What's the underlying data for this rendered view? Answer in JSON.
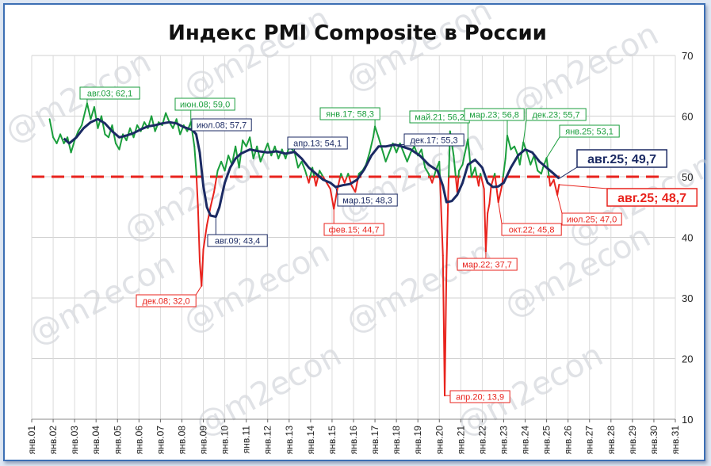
{
  "chart_data": {
    "type": "line",
    "title": "Индекс PMI Composite в России",
    "ylim": [
      10,
      70
    ],
    "yticks": [
      10,
      20,
      30,
      40,
      50,
      60,
      70
    ],
    "xlim": [
      "2001-01",
      "2031-01"
    ],
    "xticks": [
      "янв.01",
      "янв.02",
      "янв.03",
      "янв.04",
      "янв.05",
      "янв.06",
      "янв.07",
      "янв.08",
      "янв.09",
      "янв.10",
      "янв.11",
      "янв.12",
      "янв.13",
      "янв.14",
      "янв.15",
      "янв.16",
      "янв.17",
      "янв.18",
      "янв.19",
      "янв.20",
      "янв.21",
      "янв.22",
      "янв.23",
      "янв.24",
      "янв.25",
      "янв.26",
      "янв.27",
      "янв.28",
      "янв.29",
      "янв.30",
      "янв.31"
    ],
    "threshold": 50,
    "grid": true,
    "series": [
      {
        "color": "#1a9e3c",
        "color_below_threshold": "#e8231d",
        "points": [
          [
            "2001-11",
            59.5
          ],
          [
            "2002-01",
            56.5
          ],
          [
            "2002-03",
            55.5
          ],
          [
            "2002-05",
            57.0
          ],
          [
            "2002-07",
            55.5
          ],
          [
            "2002-09",
            56.5
          ],
          [
            "2002-11",
            54.0
          ],
          [
            "2003-01",
            56.0
          ],
          [
            "2003-03",
            57.5
          ],
          [
            "2003-05",
            58.5
          ],
          [
            "2003-08",
            62.1
          ],
          [
            "2003-10",
            59.5
          ],
          [
            "2003-12",
            61.5
          ],
          [
            "2004-02",
            58.0
          ],
          [
            "2004-04",
            60.0
          ],
          [
            "2004-06",
            57.0
          ],
          [
            "2004-08",
            56.5
          ],
          [
            "2004-10",
            58.5
          ],
          [
            "2004-12",
            55.5
          ],
          [
            "2005-02",
            54.5
          ],
          [
            "2005-04",
            57.0
          ],
          [
            "2005-06",
            56.0
          ],
          [
            "2005-08",
            58.0
          ],
          [
            "2005-10",
            56.5
          ],
          [
            "2005-12",
            58.5
          ],
          [
            "2006-02",
            57.5
          ],
          [
            "2006-04",
            59.0
          ],
          [
            "2006-06",
            58.0
          ],
          [
            "2006-08",
            60.0
          ],
          [
            "2006-10",
            57.5
          ],
          [
            "2006-12",
            59.0
          ],
          [
            "2007-02",
            58.5
          ],
          [
            "2007-04",
            60.5
          ],
          [
            "2007-06",
            59.0
          ],
          [
            "2007-08",
            58.0
          ],
          [
            "2007-10",
            59.5
          ],
          [
            "2007-12",
            57.0
          ],
          [
            "2008-02",
            58.5
          ],
          [
            "2008-04",
            57.5
          ],
          [
            "2008-06",
            59.0
          ],
          [
            "2008-08",
            55.0
          ],
          [
            "2008-09",
            51.0
          ],
          [
            "2008-10",
            45.0
          ],
          [
            "2008-11",
            36.0
          ],
          [
            "2008-12",
            32.0
          ],
          [
            "2009-01",
            38.0
          ],
          [
            "2009-03",
            42.0
          ],
          [
            "2009-05",
            45.0
          ],
          [
            "2009-07",
            47.5
          ],
          [
            "2009-09",
            51.0
          ],
          [
            "2009-11",
            52.5
          ],
          [
            "2010-01",
            51.0
          ],
          [
            "2010-03",
            53.5
          ],
          [
            "2010-05",
            52.0
          ],
          [
            "2010-07",
            55.0
          ],
          [
            "2010-09",
            51.5
          ],
          [
            "2010-11",
            56.0
          ],
          [
            "2011-01",
            55.0
          ],
          [
            "2011-03",
            56.5
          ],
          [
            "2011-05",
            53.0
          ],
          [
            "2011-07",
            55.0
          ],
          [
            "2011-09",
            52.5
          ],
          [
            "2011-11",
            54.0
          ],
          [
            "2012-01",
            55.5
          ],
          [
            "2012-03",
            53.5
          ],
          [
            "2012-05",
            55.0
          ],
          [
            "2012-07",
            53.0
          ],
          [
            "2012-09",
            54.5
          ],
          [
            "2012-11",
            53.0
          ],
          [
            "2013-01",
            55.0
          ],
          [
            "2013-04",
            54.1
          ],
          [
            "2013-06",
            51.5
          ],
          [
            "2013-08",
            52.5
          ],
          [
            "2013-10",
            51.0
          ],
          [
            "2013-12",
            49.0
          ],
          [
            "2014-02",
            51.5
          ],
          [
            "2014-04",
            48.5
          ],
          [
            "2014-06",
            51.0
          ],
          [
            "2014-08",
            50.0
          ],
          [
            "2014-10",
            49.0
          ],
          [
            "2014-12",
            48.0
          ],
          [
            "2015-02",
            44.7
          ],
          [
            "2015-04",
            48.0
          ],
          [
            "2015-06",
            50.5
          ],
          [
            "2015-08",
            49.0
          ],
          [
            "2015-10",
            50.5
          ],
          [
            "2015-12",
            48.5
          ],
          [
            "2016-02",
            47.5
          ],
          [
            "2016-04",
            50.5
          ],
          [
            "2016-06",
            51.0
          ],
          [
            "2016-08",
            52.0
          ],
          [
            "2016-10",
            54.0
          ],
          [
            "2016-12",
            56.5
          ],
          [
            "2017-01",
            58.3
          ],
          [
            "2017-03",
            56.5
          ],
          [
            "2017-05",
            54.5
          ],
          [
            "2017-07",
            52.5
          ],
          [
            "2017-09",
            54.0
          ],
          [
            "2017-11",
            55.5
          ],
          [
            "2018-01",
            54.0
          ],
          [
            "2018-03",
            55.5
          ],
          [
            "2018-05",
            54.0
          ],
          [
            "2018-07",
            52.5
          ],
          [
            "2018-09",
            54.0
          ],
          [
            "2018-11",
            55.0
          ],
          [
            "2019-01",
            53.5
          ],
          [
            "2019-03",
            54.5
          ],
          [
            "2019-05",
            51.5
          ],
          [
            "2019-07",
            50.5
          ],
          [
            "2019-09",
            49.0
          ],
          [
            "2019-11",
            51.0
          ],
          [
            "2020-01",
            52.5
          ],
          [
            "2020-03",
            37.0
          ],
          [
            "2020-04",
            13.9
          ],
          [
            "2020-05",
            35.0
          ],
          [
            "2020-06",
            47.5
          ],
          [
            "2020-07",
            57.5
          ],
          [
            "2020-09",
            53.5
          ],
          [
            "2020-11",
            47.5
          ],
          [
            "2020-12",
            51.0
          ],
          [
            "2021-02",
            52.0
          ],
          [
            "2021-03",
            53.5
          ],
          [
            "2021-05",
            56.2
          ],
          [
            "2021-07",
            50.0
          ],
          [
            "2021-09",
            51.5
          ],
          [
            "2021-11",
            48.5
          ],
          [
            "2021-12",
            50.5
          ],
          [
            "2022-02",
            48.0
          ],
          [
            "2022-03",
            37.7
          ],
          [
            "2022-04",
            44.0
          ],
          [
            "2022-05",
            45.5
          ],
          [
            "2022-06",
            48.5
          ],
          [
            "2022-08",
            50.5
          ],
          [
            "2022-10",
            45.8
          ],
          [
            "2022-12",
            48.5
          ],
          [
            "2023-02",
            53.0
          ],
          [
            "2023-03",
            56.8
          ],
          [
            "2023-05",
            54.5
          ],
          [
            "2023-07",
            55.0
          ],
          [
            "2023-09",
            53.5
          ],
          [
            "2023-10",
            52.0
          ],
          [
            "2023-12",
            55.7
          ],
          [
            "2024-02",
            54.0
          ],
          [
            "2024-04",
            52.0
          ],
          [
            "2024-06",
            53.5
          ],
          [
            "2024-08",
            51.0
          ],
          [
            "2024-10",
            50.5
          ],
          [
            "2024-11",
            51.5
          ],
          [
            "2025-01",
            53.1
          ],
          [
            "2025-03",
            48.5
          ],
          [
            "2025-05",
            49.5
          ],
          [
            "2025-07",
            47.0
          ],
          [
            "2025-08",
            48.7
          ]
        ]
      },
      {
        "color": "#1b2a63",
        "points": [
          [
            "2002-07",
            56.3
          ],
          [
            "2002-10",
            55.5
          ],
          [
            "2003-02",
            56.5
          ],
          [
            "2003-06",
            58.0
          ],
          [
            "2003-10",
            59.0
          ],
          [
            "2004-02",
            59.5
          ],
          [
            "2004-06",
            58.8
          ],
          [
            "2004-10",
            57.5
          ],
          [
            "2005-02",
            56.5
          ],
          [
            "2005-06",
            56.8
          ],
          [
            "2005-10",
            57.2
          ],
          [
            "2006-02",
            57.8
          ],
          [
            "2006-06",
            58.3
          ],
          [
            "2006-10",
            58.5
          ],
          [
            "2007-02",
            58.8
          ],
          [
            "2007-06",
            59.0
          ],
          [
            "2007-10",
            58.8
          ],
          [
            "2008-02",
            58.2
          ],
          [
            "2008-07",
            57.7
          ],
          [
            "2008-09",
            57.0
          ],
          [
            "2008-11",
            54.0
          ],
          [
            "2009-01",
            48.5
          ],
          [
            "2009-03",
            45.0
          ],
          [
            "2009-05",
            43.6
          ],
          [
            "2009-08",
            43.4
          ],
          [
            "2009-10",
            45.0
          ],
          [
            "2010-01",
            49.0
          ],
          [
            "2010-04",
            51.5
          ],
          [
            "2010-07",
            53.0
          ],
          [
            "2010-10",
            53.8
          ],
          [
            "2011-03",
            54.5
          ],
          [
            "2011-08",
            54.2
          ],
          [
            "2012-01",
            54.0
          ],
          [
            "2012-06",
            54.2
          ],
          [
            "2012-11",
            53.8
          ],
          [
            "2013-04",
            54.1
          ],
          [
            "2013-08",
            53.0
          ],
          [
            "2013-12",
            51.5
          ],
          [
            "2014-04",
            50.5
          ],
          [
            "2014-08",
            49.5
          ],
          [
            "2014-12",
            49.0
          ],
          [
            "2015-03",
            48.3
          ],
          [
            "2015-07",
            48.6
          ],
          [
            "2015-11",
            48.8
          ],
          [
            "2016-03",
            49.5
          ],
          [
            "2016-07",
            51.2
          ],
          [
            "2016-11",
            53.5
          ],
          [
            "2017-03",
            55.0
          ],
          [
            "2017-07",
            55.0
          ],
          [
            "2017-12",
            55.3
          ],
          [
            "2018-04",
            55.0
          ],
          [
            "2018-09",
            54.5
          ],
          [
            "2019-02",
            53.5
          ],
          [
            "2019-07",
            52.0
          ],
          [
            "2019-12",
            51.0
          ],
          [
            "2020-03",
            48.5
          ],
          [
            "2020-05",
            45.8
          ],
          [
            "2020-08",
            46.0
          ],
          [
            "2020-11",
            47.0
          ],
          [
            "2021-02",
            49.0
          ],
          [
            "2021-05",
            52.0
          ],
          [
            "2021-09",
            52.8
          ],
          [
            "2022-01",
            51.5
          ],
          [
            "2022-04",
            49.0
          ],
          [
            "2022-07",
            48.3
          ],
          [
            "2022-10",
            48.4
          ],
          [
            "2023-01",
            49.0
          ],
          [
            "2023-05",
            51.5
          ],
          [
            "2023-09",
            53.5
          ],
          [
            "2024-01",
            54.5
          ],
          [
            "2024-05",
            54.0
          ],
          [
            "2024-09",
            52.5
          ],
          [
            "2025-01",
            51.5
          ],
          [
            "2025-05",
            50.5
          ],
          [
            "2025-08",
            49.7
          ]
        ]
      }
    ],
    "annotations": [
      {
        "text": "авг.03; 62,1",
        "color": "#1a9e3c"
      },
      {
        "text": "июн.08; 59,0",
        "color": "#1a9e3c"
      },
      {
        "text": "июл.08; 57,7",
        "color": "#1b2a63"
      },
      {
        "text": "авг.09; 43,4",
        "color": "#1b2a63"
      },
      {
        "text": "дек.08; 32,0",
        "color": "#e8231d"
      },
      {
        "text": "апр.13; 54,1",
        "color": "#1b2a63"
      },
      {
        "text": "янв.17; 58,3",
        "color": "#1a9e3c"
      },
      {
        "text": "мар.15; 48,3",
        "color": "#1b2a63"
      },
      {
        "text": "фев.15; 44,7",
        "color": "#e8231d"
      },
      {
        "text": "дек.17; 55,3",
        "color": "#1b2a63"
      },
      {
        "text": "май.21; 56,2",
        "color": "#1a9e3c"
      },
      {
        "text": "мар.23; 56,8",
        "color": "#1a9e3c"
      },
      {
        "text": "дек.23; 55,7",
        "color": "#1a9e3c"
      },
      {
        "text": "янв.25; 53,1",
        "color": "#1a9e3c"
      },
      {
        "text": "авг.25; 49,7",
        "color": "#1b2a63",
        "big": true
      },
      {
        "text": "авг.25; 48,7",
        "color": "#e8231d",
        "big": true
      },
      {
        "text": "июл.25; 47,0",
        "color": "#e8231d"
      },
      {
        "text": "окт.22; 45,8",
        "color": "#e8231d"
      },
      {
        "text": "мар.22; 37,7",
        "color": "#e8231d"
      },
      {
        "text": "апр.20; 13,9",
        "color": "#e8231d"
      }
    ],
    "watermark": "@m2econ"
  }
}
